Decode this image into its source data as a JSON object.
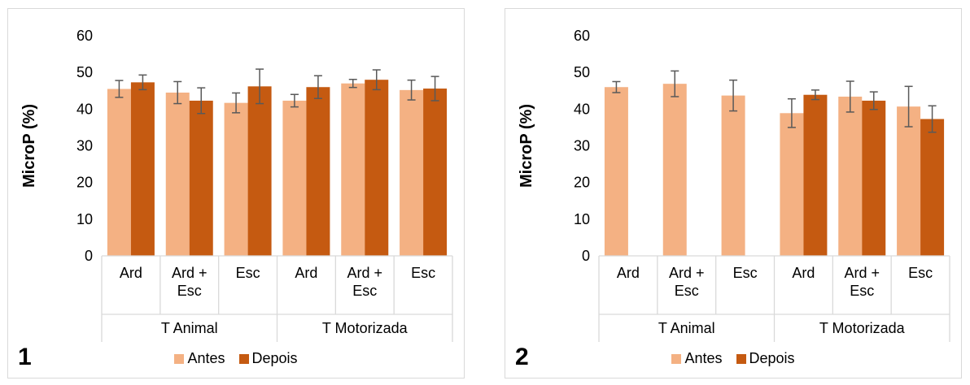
{
  "colors": {
    "antes": "#f4b183",
    "depois": "#c55a11",
    "axis": "#d9d9d9",
    "errbar": "#595959"
  },
  "legend": {
    "antes": "Antes",
    "depois": "Depois"
  },
  "chart_data": [
    {
      "type": "bar",
      "panel_label": "1",
      "ylabel": "MicroP (%)",
      "ylim": [
        0,
        60
      ],
      "yticks": [
        0,
        10,
        20,
        30,
        40,
        50,
        60
      ],
      "categories": [
        "Ard",
        "Ard + Esc",
        "Esc",
        "Ard",
        "Ard + Esc",
        "Esc"
      ],
      "category_lines": [
        [
          "Ard"
        ],
        [
          "Ard +",
          "Esc"
        ],
        [
          "Esc"
        ],
        [
          "Ard"
        ],
        [
          "Ard +",
          "Esc"
        ],
        [
          "Esc"
        ]
      ],
      "groups": [
        {
          "label": "T Animal",
          "span": [
            0,
            3
          ]
        },
        {
          "label": "T Motorizada",
          "span": [
            3,
            6
          ]
        }
      ],
      "series": [
        {
          "name": "Antes",
          "values": [
            45.5,
            44.5,
            41.7,
            42.3,
            47.0,
            45.2
          ],
          "errors": [
            2.3,
            3.0,
            2.7,
            1.7,
            1.1,
            2.7
          ]
        },
        {
          "name": "Depois",
          "values": [
            47.3,
            42.3,
            46.2,
            46.0,
            48.0,
            45.6
          ],
          "errors": [
            2.0,
            3.5,
            4.7,
            3.1,
            2.7,
            3.3
          ]
        }
      ],
      "legend_position": "bottom"
    },
    {
      "type": "bar",
      "panel_label": "2",
      "ylabel": "MicroP (%)",
      "ylim": [
        0,
        60
      ],
      "yticks": [
        0,
        10,
        20,
        30,
        40,
        50,
        60
      ],
      "categories": [
        "Ard",
        "Ard + Esc",
        "Esc",
        "Ard",
        "Ard + Esc",
        "Esc"
      ],
      "category_lines": [
        [
          "Ard"
        ],
        [
          "Ard +",
          "Esc"
        ],
        [
          "Esc"
        ],
        [
          "Ard"
        ],
        [
          "Ard +",
          "Esc"
        ],
        [
          "Esc"
        ]
      ],
      "groups": [
        {
          "label": "T Animal",
          "span": [
            0,
            3
          ]
        },
        {
          "label": "T Motorizada",
          "span": [
            3,
            6
          ]
        }
      ],
      "series": [
        {
          "name": "Antes",
          "values": [
            46.0,
            46.9,
            43.7,
            38.9,
            43.4,
            40.7
          ],
          "errors": [
            1.5,
            3.5,
            4.2,
            3.9,
            4.2,
            5.5
          ]
        },
        {
          "name": "Depois",
          "values": [
            null,
            null,
            null,
            43.9,
            42.3,
            37.3
          ],
          "errors": [
            null,
            null,
            null,
            1.3,
            2.4,
            3.6
          ]
        }
      ],
      "legend_position": "bottom"
    }
  ]
}
